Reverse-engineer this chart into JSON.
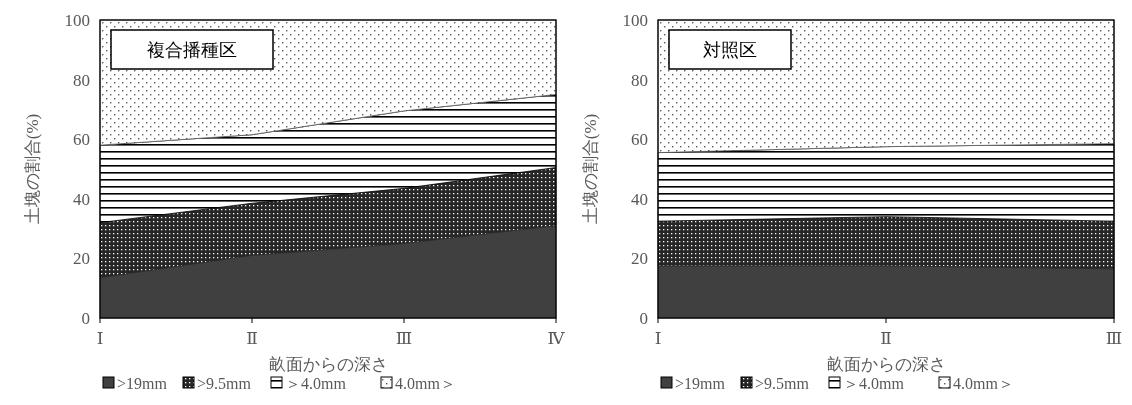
{
  "chart_data": [
    {
      "type": "area",
      "title": "複合播種区",
      "xlabel": "畝面からの深さ",
      "ylabel": "土塊の割合(%)",
      "categories": [
        "Ⅰ",
        "Ⅱ",
        "Ⅲ",
        "Ⅳ"
      ],
      "stacked": true,
      "ylim": [
        0,
        100
      ],
      "yticks": [
        0,
        20,
        40,
        60,
        80,
        100
      ],
      "legend": "bottom",
      "series": [
        {
          "name": ">19mm",
          "color": "#404040",
          "values": [
            13.5,
            21,
            25,
            31
          ]
        },
        {
          "name": ">9.5mm",
          "color": "#262626",
          "values": [
            18.5,
            17.5,
            18.5,
            19.5
          ]
        },
        {
          "name": "＞4.0mm",
          "color": "#000000",
          "values": [
            26,
            23,
            26,
            24.5
          ]
        },
        {
          "name": "4.0mm＞",
          "color": "#595959",
          "values": [
            42,
            38.5,
            30.5,
            25
          ]
        }
      ]
    },
    {
      "type": "area",
      "title": "対照区",
      "xlabel": "畝面からの深さ",
      "ylabel": "土塊の割合(%)",
      "categories": [
        "Ⅰ",
        "Ⅱ",
        "Ⅲ"
      ],
      "stacked": true,
      "ylim": [
        0,
        100
      ],
      "yticks": [
        0,
        20,
        40,
        60,
        80,
        100
      ],
      "legend": "bottom",
      "series": [
        {
          "name": ">19mm",
          "color": "#404040",
          "values": [
            17.5,
            17.5,
            16.5
          ]
        },
        {
          "name": ">9.5mm",
          "color": "#262626",
          "values": [
            15,
            16.5,
            16
          ]
        },
        {
          "name": "＞4.0mm",
          "color": "#000000",
          "values": [
            23,
            23.5,
            26
          ]
        },
        {
          "name": "4.0mm＞",
          "color": "#595959",
          "values": [
            44.5,
            42.5,
            41.5
          ]
        }
      ]
    }
  ]
}
